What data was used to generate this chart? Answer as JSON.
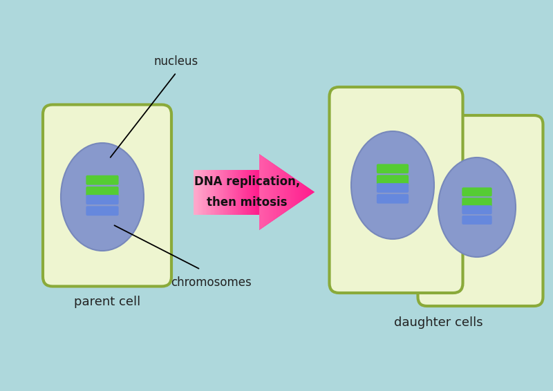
{
  "background_color": "#aed8dc",
  "cell_fill": "#eef5d0",
  "cell_edge": "#8aaa3a",
  "nucleus_fill": "#8899cc",
  "nucleus_edge": "#7788bb",
  "chromosome_green": "#55cc33",
  "chromosome_blue": "#6688dd",
  "arrow_tip_color": "#ff1a8c",
  "arrow_base_color": "#ffaacc",
  "label_color": "#222222",
  "parent_label": "parent cell",
  "daughter_label": "daughter cells",
  "nucleus_label": "nucleus",
  "chromosome_label": "chromosomes",
  "arrow_label_line1": "DNA replication,",
  "arrow_label_line2": "then mitosis",
  "figsize": [
    8.0,
    5.66
  ]
}
